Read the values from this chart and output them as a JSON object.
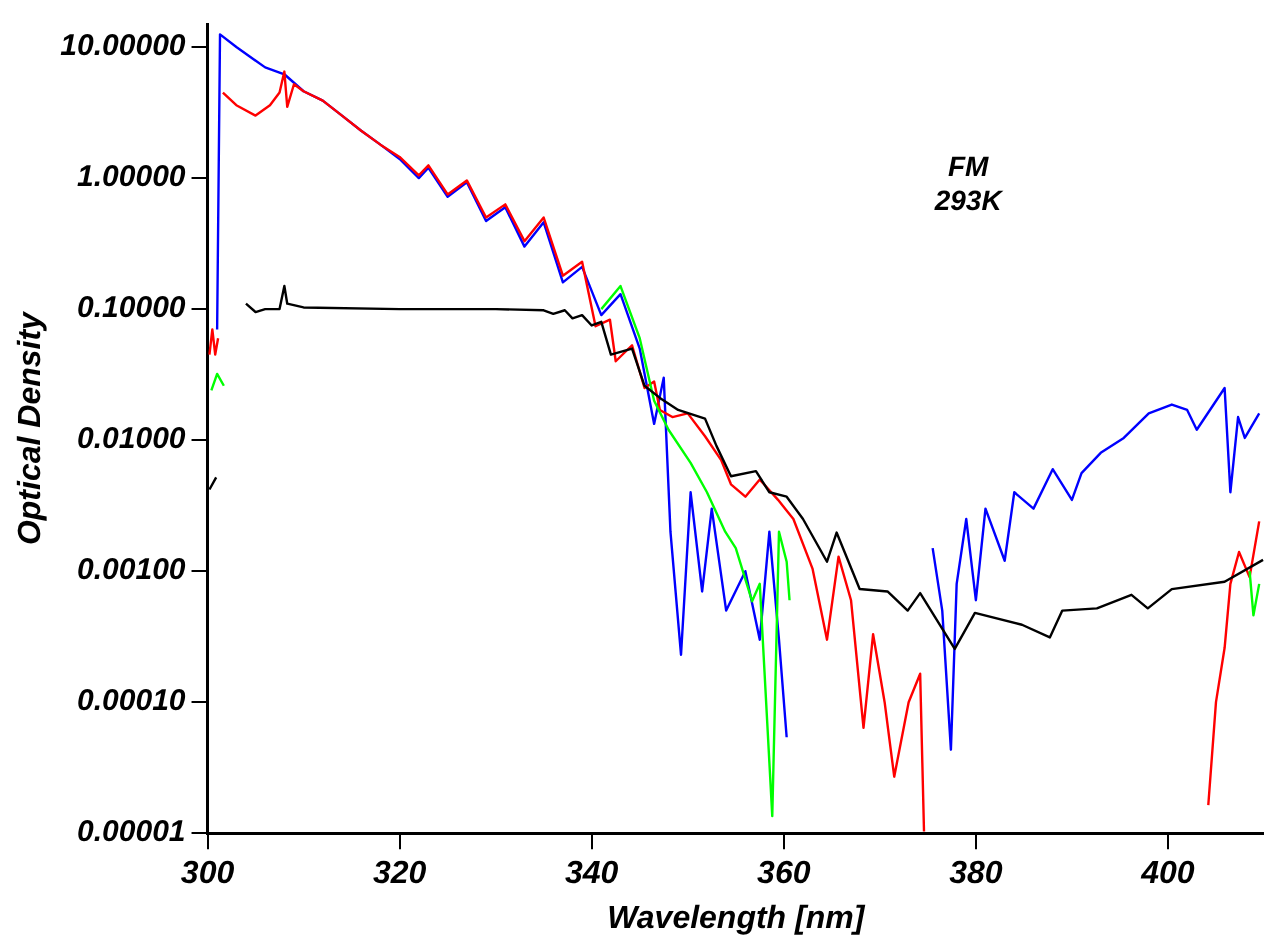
{
  "chart_data": {
    "type": "line",
    "xlabel": "Wavelength [nm]",
    "ylabel": "Optical Density",
    "annotations": [
      "FM",
      "293K"
    ],
    "log": "y",
    "legend": false,
    "marker": "none",
    "xlim": [
      300,
      410
    ],
    "xticks": [
      300,
      320,
      340,
      360,
      380,
      400
    ],
    "ylim": [
      1e-05,
      15
    ],
    "yticks": [
      {
        "value": 10,
        "label": "10.00000"
      },
      {
        "value": 1,
        "label": "1.00000"
      },
      {
        "value": 0.1,
        "label": "0.10000"
      },
      {
        "value": 0.01,
        "label": "0.01000"
      },
      {
        "value": 0.001,
        "label": "0.00100"
      },
      {
        "value": 0.0001,
        "label": "0.00010"
      },
      {
        "value": 1e-05,
        "label": "0.00001"
      }
    ],
    "series": [
      {
        "color": "#0000ff",
        "x": [
          301.0,
          301.3,
          303,
          306,
          308,
          310,
          312,
          314,
          316,
          318,
          320,
          322,
          323,
          325,
          327,
          329,
          331,
          333,
          335,
          337,
          339,
          341,
          343,
          345,
          346.5,
          347.5,
          348.2,
          349.3,
          350.3,
          351.5,
          352.5,
          354,
          356,
          357.5,
          358.5,
          359.5,
          360.3,
          361,
          375.5,
          376.5,
          377.4,
          378,
          379,
          380,
          381,
          383,
          384,
          386,
          388,
          390,
          391,
          393,
          395.4,
          398,
          400.4,
          402,
          403,
          405.9,
          406.5,
          407.3,
          408,
          409.5
        ],
        "values": [
          0.07,
          12.5,
          10,
          7,
          6.2,
          4.6,
          3.9,
          3.0,
          2.3,
          1.8,
          1.4,
          1.0,
          1.2,
          0.72,
          0.93,
          0.47,
          0.6,
          0.3,
          0.46,
          0.16,
          0.21,
          0.09,
          0.13,
          0.05,
          0.0133,
          0.03,
          0.002,
          0.00023,
          0.004,
          0.0007,
          0.003,
          0.0005,
          0.001,
          0.0003,
          0.002,
          0.0003,
          5.4e-05,
          null,
          0.0015,
          0.0005,
          4.34e-05,
          0.0008,
          0.0025,
          0.0006,
          0.003,
          0.0012,
          0.004,
          0.003,
          0.006,
          0.0035,
          0.0056,
          0.008,
          0.0104,
          0.016,
          0.0187,
          0.017,
          0.012,
          0.025,
          0.004,
          0.015,
          0.0104,
          0.016
        ]
      },
      {
        "color": "#ff0000",
        "x": [
          300.2,
          300.5,
          300.8,
          301.1,
          301.4,
          301.6,
          303,
          305,
          306.5,
          307.5,
          308,
          308.3,
          309,
          310,
          312,
          314,
          316,
          318,
          320,
          322,
          323,
          325,
          327,
          329,
          331,
          333,
          335,
          337,
          339,
          340.4,
          341.9,
          342.5,
          344.2,
          345.5,
          346.5,
          347.1,
          348.4,
          350,
          351.8,
          353.5,
          354.5,
          356,
          357.5,
          359.4,
          361,
          363,
          364.5,
          365.7,
          367,
          368.3,
          369.3,
          370.5,
          371.5,
          373,
          374.2,
          374.6,
          375,
          404.2,
          405,
          405.9,
          406.5,
          407.4,
          408.5,
          409.5
        ],
        "values": [
          0.045,
          0.07,
          0.045,
          0.06,
          null,
          4.5,
          3.6,
          3.0,
          3.6,
          4.5,
          6.5,
          3.5,
          5.2,
          4.6,
          3.9,
          3.0,
          2.3,
          1.8,
          1.45,
          1.05,
          1.25,
          0.75,
          0.96,
          0.5,
          0.63,
          0.33,
          0.5,
          0.18,
          0.23,
          0.074,
          0.083,
          0.04,
          0.053,
          0.025,
          0.028,
          0.017,
          0.015,
          0.016,
          0.0107,
          0.007,
          0.0046,
          0.0037,
          0.005,
          0.0035,
          0.0025,
          0.00104,
          0.0003,
          0.00129,
          0.0006,
          6.37e-05,
          0.00033,
          0.0001,
          2.7e-05,
          0.0001,
          0.000165,
          1.03e-05,
          null,
          1.64e-05,
          0.0001,
          0.00026,
          0.0008,
          0.0014,
          0.0009,
          0.0024
        ]
      },
      {
        "color": "#00ff00",
        "x": [
          300.4,
          301.0,
          301.7,
          301.9,
          341,
          343,
          345,
          346.5,
          348,
          350.3,
          352,
          353.9,
          355,
          356.7,
          357.5,
          358.8,
          359.5,
          360.3,
          360.6,
          361,
          408.5,
          408.9,
          409.5
        ],
        "values": [
          0.024,
          0.032,
          0.026,
          null,
          0.1,
          0.15,
          0.06,
          0.02,
          0.012,
          0.0067,
          0.004,
          0.002,
          0.0015,
          0.00059,
          0.0008,
          1.35e-05,
          0.002,
          0.00118,
          0.0006,
          null,
          0.001,
          0.00046,
          0.0008
        ]
      },
      {
        "color": "#000000",
        "x": [
          300.2,
          300.9,
          301,
          304,
          305,
          306,
          307.5,
          308,
          308.3,
          310,
          320,
          330,
          335,
          336,
          337.2,
          338,
          339,
          340,
          341,
          342,
          344.2,
          345.5,
          347.1,
          349,
          351.8,
          353,
          354.5,
          357.1,
          358.5,
          360.3,
          362,
          364.5,
          365.5,
          367.9,
          370.8,
          372.9,
          374.2,
          377.8,
          379.9,
          384.8,
          387.7,
          389,
          392.6,
          396.2,
          397.9,
          400.4,
          405.9,
          409.9
        ],
        "values": [
          0.0042,
          0.0052,
          null,
          0.11,
          0.095,
          0.1,
          0.1,
          0.15,
          0.11,
          0.103,
          0.1,
          0.1,
          0.098,
          0.092,
          0.098,
          0.085,
          0.09,
          0.075,
          0.08,
          0.045,
          0.05,
          0.026,
          0.021,
          0.017,
          0.0146,
          0.009,
          0.0053,
          0.0058,
          0.004,
          0.0037,
          0.0025,
          0.00118,
          0.00197,
          0.00073,
          0.0007,
          0.0005,
          0.00068,
          0.000255,
          0.00048,
          0.00039,
          0.000312,
          0.0005,
          0.00052,
          0.00066,
          0.00052,
          0.00073,
          0.00083,
          0.00122
        ]
      }
    ]
  }
}
